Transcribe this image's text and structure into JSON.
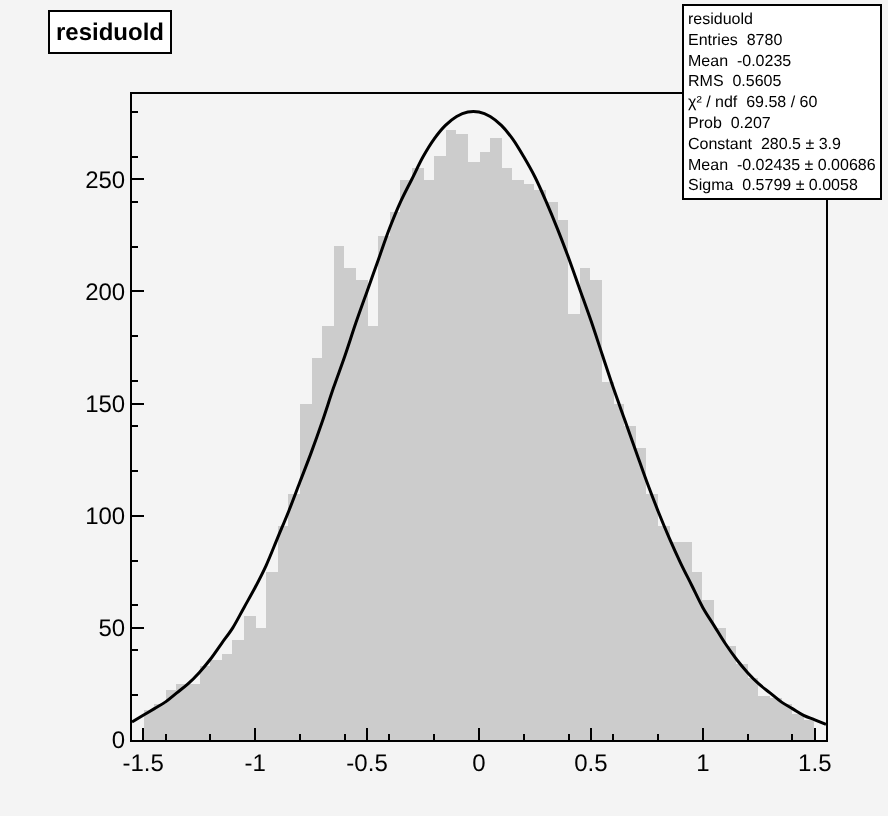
{
  "chart_data": {
    "type": "histogram",
    "title": "residuold",
    "bins": [
      -1.5,
      -1.45,
      -1.4,
      -1.35,
      -1.3,
      -1.25,
      -1.2,
      -1.15,
      -1.1,
      -1.05,
      -1.0,
      -0.95,
      -0.9,
      -0.85,
      -0.8,
      -0.75,
      -0.7,
      -0.65,
      -0.6,
      -0.55,
      -0.5,
      -0.45,
      -0.4,
      -0.35,
      -0.3,
      -0.25,
      -0.2,
      -0.15,
      -0.1,
      -0.05,
      0.0,
      0.05,
      0.1,
      0.15,
      0.2,
      0.25,
      0.3,
      0.35,
      0.4,
      0.45,
      0.5,
      0.55,
      0.6,
      0.65,
      0.7,
      0.75,
      0.8,
      0.85,
      0.9,
      0.95,
      1.0,
      1.05,
      1.1,
      1.15,
      1.2,
      1.25,
      1.3,
      1.35,
      1.4,
      1.45,
      1.5
    ],
    "values": [
      13,
      16,
      22,
      25,
      25,
      33,
      36,
      38,
      45,
      55,
      50,
      75,
      95,
      110,
      150,
      170,
      185,
      220,
      210,
      205,
      185,
      225,
      235,
      250,
      255,
      250,
      260,
      272,
      270,
      258,
      262,
      268,
      255,
      250,
      248,
      245,
      240,
      232,
      190,
      210,
      205,
      160,
      150,
      140,
      130,
      110,
      95,
      88,
      88,
      75,
      62,
      50,
      42,
      34,
      28,
      20,
      19,
      16,
      12,
      9
    ],
    "color": "#808080",
    "series": [
      {
        "type": "line",
        "color": "#000000",
        "x": [
          -1.55,
          -1.5,
          -1.45,
          -1.4,
          -1.35,
          -1.3,
          -1.25,
          -1.2,
          -1.15,
          -1.1,
          -1.05,
          -1.0,
          -0.95,
          -0.9,
          -0.85,
          -0.8,
          -0.75,
          -0.7,
          -0.65,
          -0.6,
          -0.55,
          -0.5,
          -0.45,
          -0.4,
          -0.35,
          -0.3,
          -0.25,
          -0.2,
          -0.15,
          -0.1,
          -0.05,
          0.0,
          0.05,
          0.1,
          0.15,
          0.2,
          0.25,
          0.3,
          0.35,
          0.4,
          0.45,
          0.5,
          0.55,
          0.6,
          0.65,
          0.7,
          0.75,
          0.8,
          0.85,
          0.9,
          0.95,
          1.0,
          1.05,
          1.1,
          1.15,
          1.2,
          1.25,
          1.3,
          1.35,
          1.4,
          1.45,
          1.5,
          1.55
        ],
        "values": [
          8,
          11,
          14,
          17,
          21,
          25,
          30,
          36,
          43,
          50,
          59,
          68,
          78,
          90,
          102,
          115,
          128,
          142,
          157,
          171,
          186,
          200,
          214,
          228,
          240,
          250,
          260,
          268,
          274,
          278,
          280,
          280,
          278,
          274,
          268,
          260,
          251,
          240,
          228,
          215,
          201,
          187,
          172,
          157,
          143,
          129,
          115,
          102,
          90,
          79,
          69,
          59,
          51,
          43,
          36,
          30,
          25,
          21,
          17,
          14,
          11,
          9,
          7
        ]
      }
    ],
    "xlim": [
      -1.55,
      1.55
    ],
    "xticks": [
      -1.5,
      -1,
      -0.5,
      0,
      0.5,
      1,
      1.5
    ],
    "ylim": [
      0,
      288
    ],
    "yticks": [
      0,
      50,
      100,
      150,
      200,
      250
    ],
    "grid": false,
    "annotations": [
      "residuold",
      "Entries  8780",
      "Mean  -0.0235",
      "RMS  0.5605",
      "χ² / ndf  69.58 / 60",
      "Prob  0.207",
      "Constant  280.5 ± 3.9",
      "Mean  -0.02435 ± 0.00686",
      "Sigma  0.5799 ± 0.0058"
    ]
  }
}
